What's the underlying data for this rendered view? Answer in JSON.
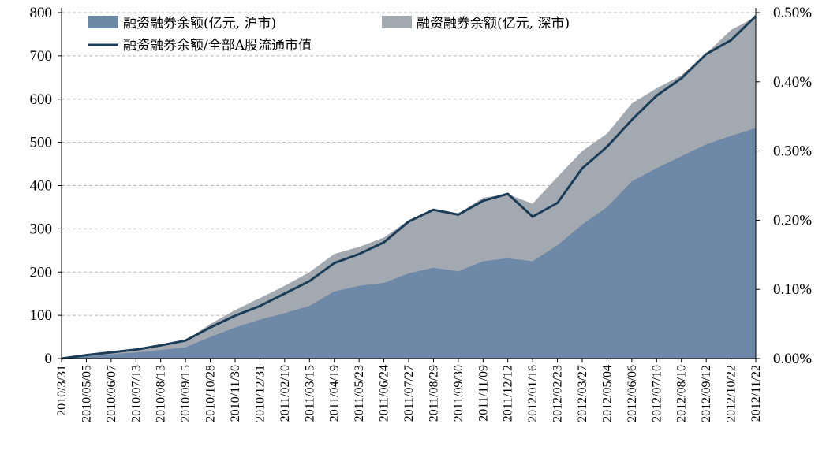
{
  "chart_data": {
    "type": "area",
    "title": "",
    "xlabel": "",
    "ylabel_left": "",
    "ylabel_right": "",
    "ylim_left": [
      0,
      800
    ],
    "ylim_right": [
      0,
      0.005
    ],
    "yticks_left": [
      "0",
      "100",
      "200",
      "300",
      "400",
      "500",
      "600",
      "700",
      "800"
    ],
    "yticks_right": [
      "0.00%",
      "0.10%",
      "0.20%",
      "0.30%",
      "0.40%",
      "0.50%"
    ],
    "grid": "horizontal dashed",
    "legend_position": "top-left",
    "categories": [
      "2010/3/31",
      "2010/05/05",
      "2010/06/07",
      "2010/07/13",
      "2010/08/13",
      "2010/09/15",
      "2010/10/28",
      "2010/11/30",
      "2010/12/31",
      "2011/02/10",
      "2011/03/15",
      "2011/04/19",
      "2011/05/23",
      "2011/06/24",
      "2011/07/27",
      "2011/08/29",
      "2011/09/30",
      "2011/11/09",
      "2011/12/12",
      "2012/01/16",
      "2012/02/23",
      "2012/03/27",
      "2012/05/04",
      "2012/06/06",
      "2012/07/10",
      "2012/08/10",
      "2012/09/12",
      "2012/10/22",
      "2012/11/22"
    ],
    "series": [
      {
        "name": "融资融券余额(亿元, 沪市)",
        "axis": "left",
        "color": "#6e89a8",
        "values": [
          0,
          5,
          10,
          14,
          20,
          26,
          50,
          72,
          90,
          105,
          122,
          155,
          168,
          175,
          197,
          210,
          202,
          225,
          232,
          225,
          262,
          310,
          350,
          410,
          440,
          468,
          495,
          515,
          533
        ]
      },
      {
        "name": "融资融券余额(亿元, 深市)",
        "axis": "left",
        "color": "#a3a9b0",
        "note_stacked_total": true,
        "values": [
          0,
          7,
          14,
          21,
          30,
          42,
          80,
          112,
          140,
          168,
          200,
          242,
          258,
          280,
          320,
          345,
          335,
          372,
          380,
          358,
          420,
          480,
          520,
          590,
          625,
          655,
          705,
          760,
          790
        ]
      },
      {
        "name": "融资融券余额/全部A股流通市值",
        "axis": "right",
        "color": "#1c3d58",
        "values": [
          0,
          5e-05,
          9e-05,
          0.00013,
          0.00019,
          0.00026,
          0.00045,
          0.00062,
          0.00076,
          0.00094,
          0.00112,
          0.00138,
          0.00151,
          0.00168,
          0.00198,
          0.00215,
          0.00208,
          0.00228,
          0.00238,
          0.00205,
          0.00225,
          0.00275,
          0.00306,
          0.00345,
          0.0038,
          0.00405,
          0.0044,
          0.0046,
          0.00495
        ]
      }
    ]
  }
}
